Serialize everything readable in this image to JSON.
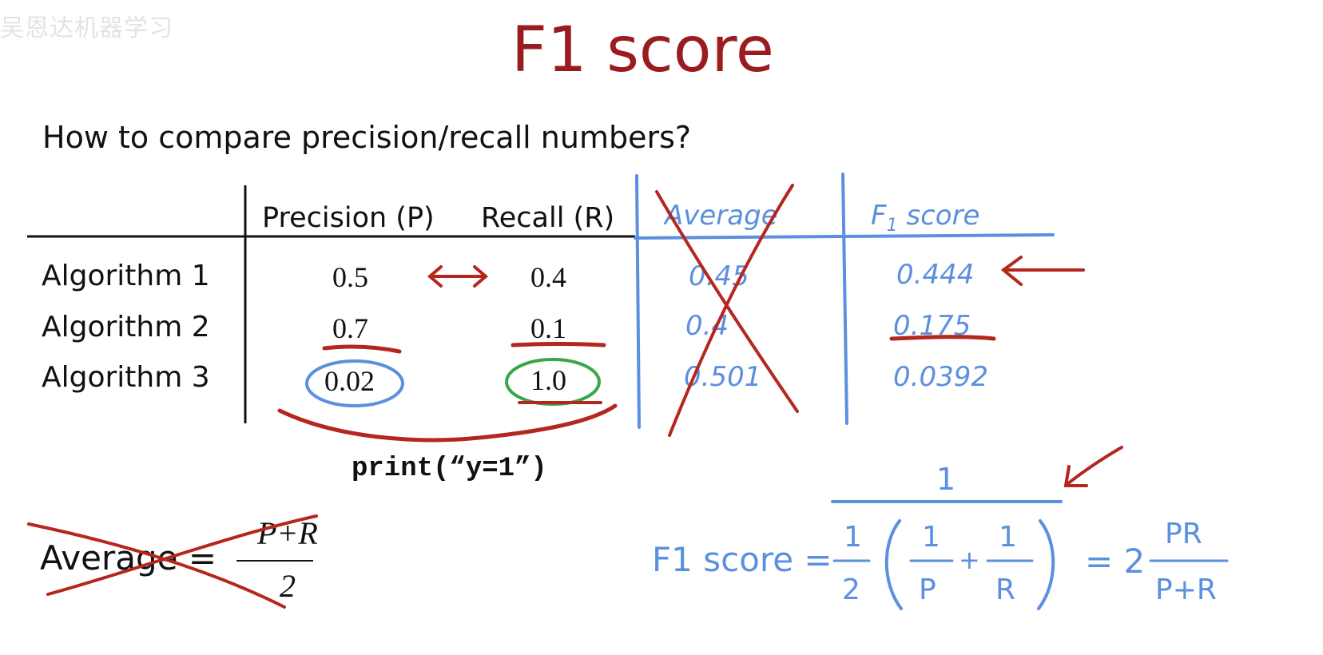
{
  "watermark": "吴恩达机器学习",
  "title": "F1 score",
  "question": "How to compare precision/recall numbers?",
  "table": {
    "headers": {
      "precision": "Precision (P)",
      "recall": "Recall (R)",
      "average": "Average",
      "f1": "F",
      "f1_sub": "1",
      "f1_rest": " score"
    },
    "rows": [
      {
        "label": "Algorithm 1",
        "precision": "0.5",
        "recall": "0.4",
        "average": "0.45",
        "f1": "0.444"
      },
      {
        "label": "Algorithm 2",
        "precision": "0.7",
        "recall": "0.1",
        "average": "0.4",
        "f1": "0.175"
      },
      {
        "label": "Algorithm 3",
        "precision": "0.02",
        "recall": "1.0",
        "average": "0.501",
        "f1": "0.0392"
      }
    ]
  },
  "code": "print(“y=1”)",
  "average_formula": {
    "label": "Average = ",
    "numerator": "P+R",
    "denominator": "2"
  },
  "f1_formula": {
    "label": "F1 score =",
    "top": "1",
    "half_num": "1",
    "half_den": "2",
    "p_num": "1",
    "p_den": "P",
    "plus": "+",
    "r_num": "1",
    "r_den": "R",
    "equals": "= 2",
    "pr_num": "PR",
    "pr_den": "P+R"
  },
  "colors": {
    "title_red": "#9b1c1f",
    "ink_red": "#b5261e",
    "ink_blue": "#5b8fdf",
    "ink_green": "#3aa64a"
  }
}
